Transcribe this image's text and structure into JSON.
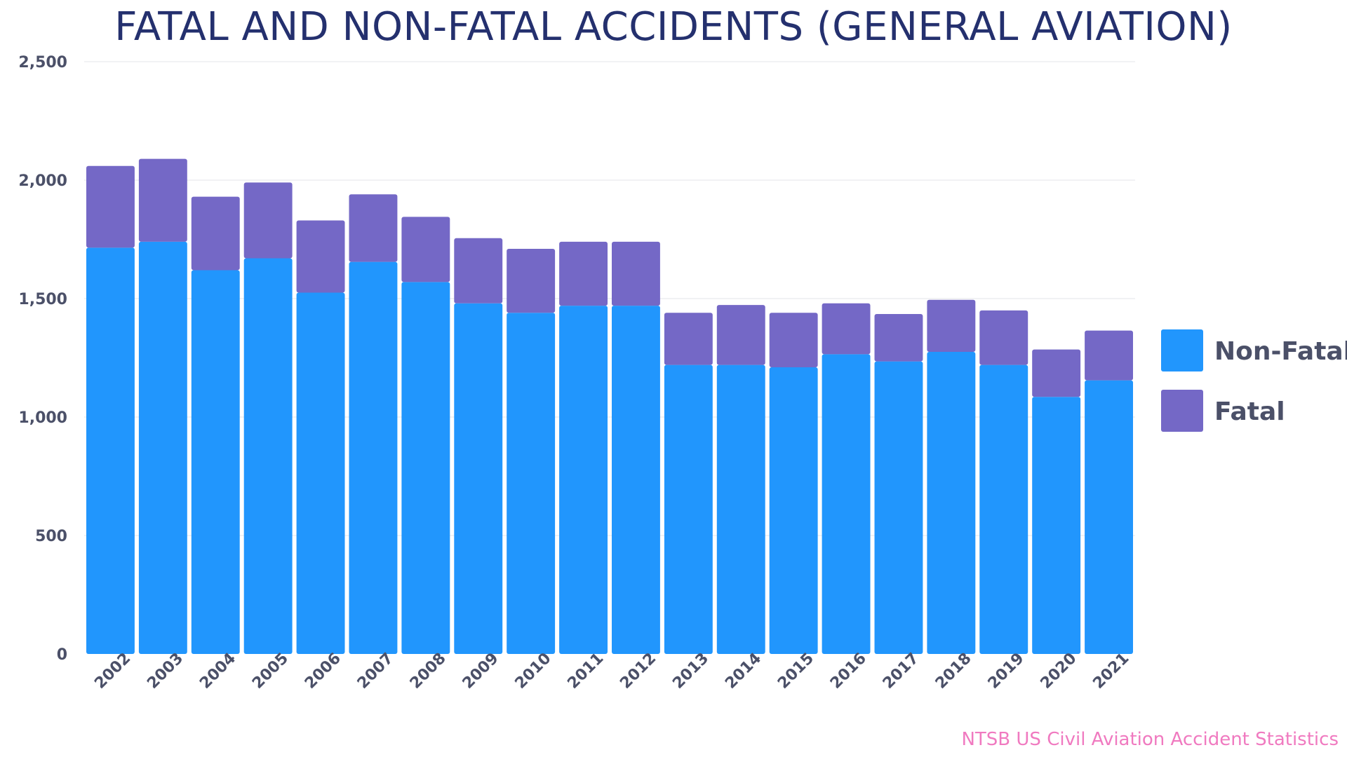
{
  "chart_data": {
    "type": "bar",
    "stacked": true,
    "title": "FATAL AND NON-FATAL ACCIDENTS (GENERAL AVIATION)",
    "xlabel": "",
    "ylabel": "",
    "ylim": [
      0,
      2500
    ],
    "yticks": [
      0,
      500,
      1000,
      1500,
      2000,
      2500
    ],
    "ytick_labels": [
      "0",
      "500",
      "1,000",
      "1,500",
      "2,000",
      "2,500"
    ],
    "grid": true,
    "legend_position": "right",
    "categories": [
      "2002",
      "2003",
      "2004",
      "2005",
      "2006",
      "2007",
      "2008",
      "2009",
      "2010",
      "2011",
      "2012",
      "2013",
      "2014",
      "2015",
      "2016",
      "2017",
      "2018",
      "2019",
      "2020",
      "2021"
    ],
    "series": [
      {
        "name": "Non-Fatal",
        "color": "#2196fd",
        "values": [
          1715,
          1740,
          1620,
          1670,
          1525,
          1655,
          1570,
          1480,
          1440,
          1470,
          1470,
          1220,
          1220,
          1210,
          1265,
          1235,
          1275,
          1220,
          1085,
          1155
        ]
      },
      {
        "name": "Fatal",
        "color": "#7468c6",
        "values": [
          345,
          350,
          310,
          320,
          305,
          285,
          275,
          275,
          270,
          270,
          270,
          220,
          253,
          230,
          215,
          200,
          220,
          230,
          200,
          210
        ]
      }
    ],
    "source": "NTSB US Civil Aviation Accident Statistics"
  }
}
